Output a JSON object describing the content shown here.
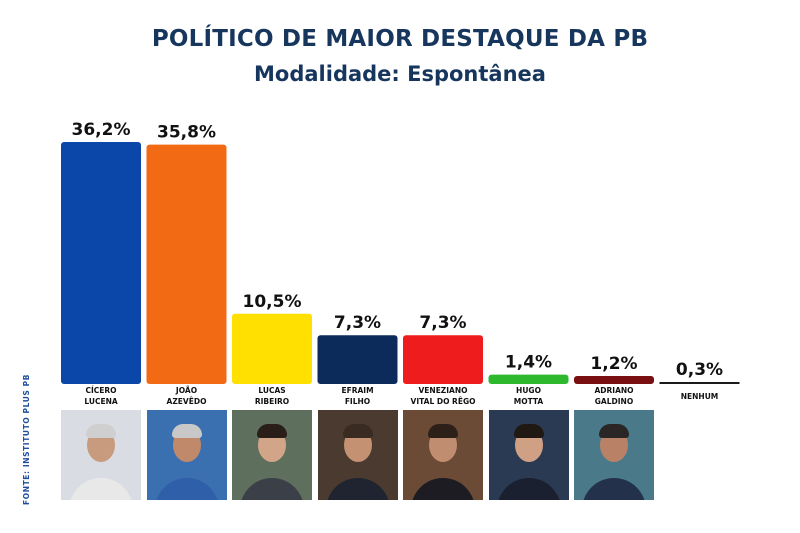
{
  "title": "POLÍTICO DE MAIOR DESTAQUE DA PB",
  "subtitle": "Modalidade: Espontânea",
  "source": "FONTE: INSTITUTO PLUS PB",
  "chart_data": {
    "type": "bar",
    "title": "POLÍTICO DE MAIOR DESTAQUE DA PB",
    "subtitle": "Modalidade: Espontânea",
    "categories": [
      [
        "CÍCERO",
        "LUCENA"
      ],
      [
        "JOÃO",
        "AZEVÊDO"
      ],
      [
        "LUCAS",
        "RIBEIRO"
      ],
      [
        "EFRAIM",
        "FILHO"
      ],
      [
        "VENEZIANO",
        "VITAL DO RÊGO"
      ],
      [
        "HUGO",
        "MOTTA"
      ],
      [
        "ADRIANO",
        "GALDINO"
      ],
      [
        "NENHUM"
      ]
    ],
    "values": [
      36.2,
      35.8,
      10.5,
      7.3,
      7.3,
      1.4,
      1.2,
      0.3
    ],
    "value_labels": [
      "36,2%",
      "35,8%",
      "10,5%",
      "7,3%",
      "7,3%",
      "1,4%",
      "1,2%",
      "0,3%"
    ],
    "colors": [
      "#0b47a8",
      "#f26a13",
      "#ffe000",
      "#0d2b5a",
      "#ee1c1c",
      "#2db82d",
      "#7a0f12",
      "#1a1a1a"
    ],
    "ylim": [
      0,
      36.2
    ],
    "grid": false,
    "legend": "none"
  },
  "photos": [
    {
      "name": "cicero-lucena-photo",
      "bg": "#d9dde3",
      "suit": "#e8e8e8",
      "skin": "#c99b7e",
      "hair": "#cfcfcf"
    },
    {
      "name": "joao-azevedo-photo",
      "bg": "#3a6fb0",
      "suit": "#2f5fa8",
      "skin": "#c08a6a",
      "hair": "#c8c8c8"
    },
    {
      "name": "lucas-ribeiro-photo",
      "bg": "#5f6f5e",
      "suit": "#3a3f48",
      "skin": "#d3a588",
      "hair": "#2a1e18"
    },
    {
      "name": "efraim-filho-photo",
      "bg": "#4b3a2f",
      "suit": "#1f2430",
      "skin": "#c49273",
      "hair": "#3a2b22"
    },
    {
      "name": "veneziano-photo",
      "bg": "#6b4a36",
      "suit": "#1c1c22",
      "skin": "#c08d70",
      "hair": "#2c2019"
    },
    {
      "name": "hugo-motta-photo",
      "bg": "#2a3a52",
      "suit": "#1a2030",
      "skin": "#d0a085",
      "hair": "#201812"
    },
    {
      "name": "adriano-galdino-photo",
      "bg": "#4a7a8a",
      "suit": "#23324a",
      "skin": "#b98266",
      "hair": "#2a2626"
    }
  ]
}
